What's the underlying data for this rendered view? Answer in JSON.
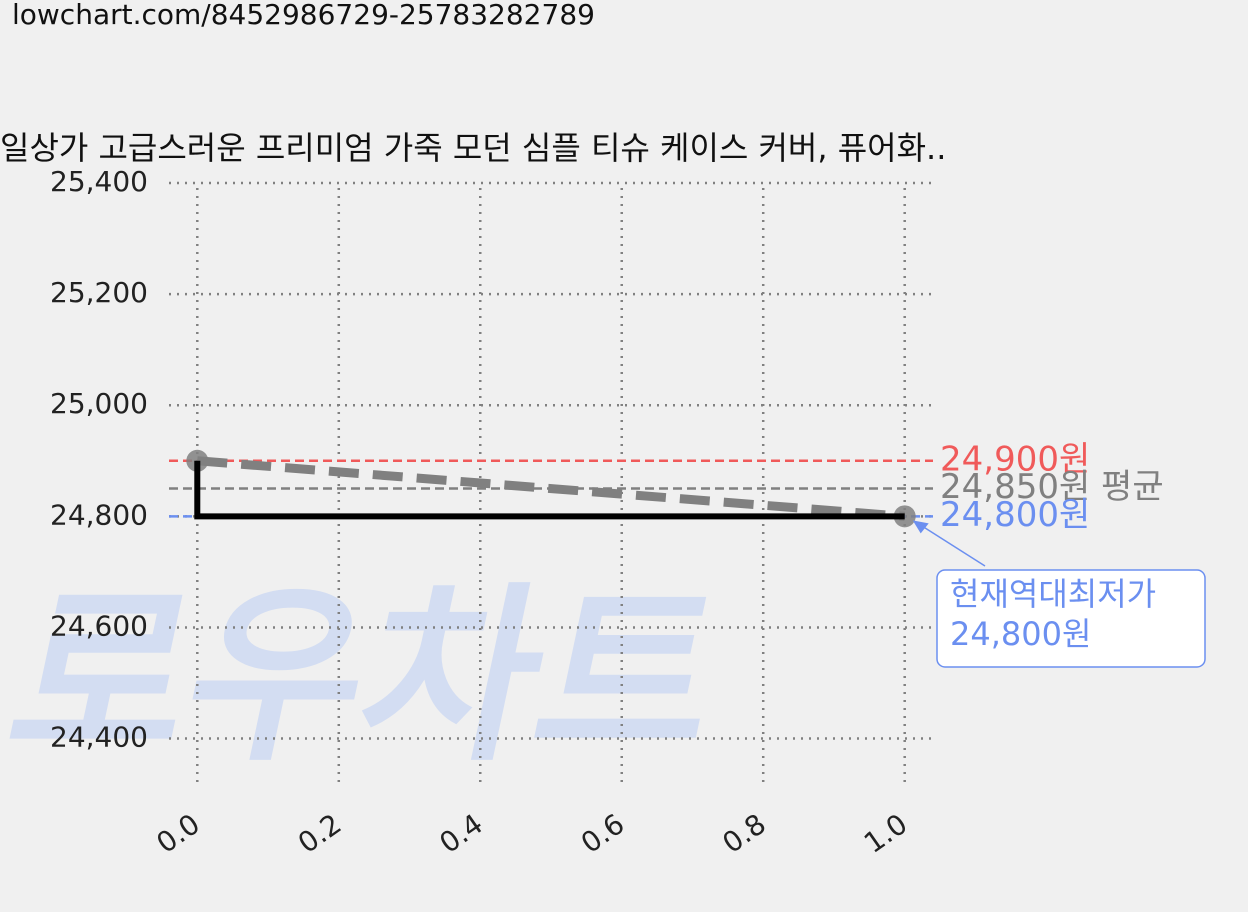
{
  "source_url": "lowchart.com/8452986729-25783282789",
  "chart_data": {
    "type": "line",
    "title": "일상가 고급스러운 프리미엄 가죽 모던 심플 티슈 케이스 커버, 퓨어화..",
    "watermark": "로우차트",
    "x": [
      0,
      1
    ],
    "series": [
      {
        "color": "#808080",
        "style": "dashed",
        "markers": true,
        "values": [
          24900,
          24800
        ]
      },
      {
        "color": "#000000",
        "style": "solid",
        "step": "pre",
        "values": [
          24900,
          24800
        ]
      }
    ],
    "hlines": [
      {
        "value": 24900,
        "label": "24,900원",
        "color": "#f05a5a"
      },
      {
        "value": 24850,
        "label": "24,850원 평균",
        "color": "#808080"
      },
      {
        "value": 24800,
        "label": "24,800원",
        "color": "#6b8ff0"
      }
    ],
    "annotation": {
      "lines": [
        "현재역대최저가",
        "24,800원"
      ],
      "x": 1,
      "y": 24800,
      "color": "#6b8ff0"
    },
    "xlim": [
      -0.04,
      1.04
    ],
    "ylim": [
      24320,
      25400
    ],
    "xticks": [
      {
        "value": 0,
        "label": "0.0"
      },
      {
        "value": 0.2,
        "label": "0.2"
      },
      {
        "value": 0.4,
        "label": "0.4"
      },
      {
        "value": 0.6,
        "label": "0.6"
      },
      {
        "value": 0.8,
        "label": "0.8"
      },
      {
        "value": 1,
        "label": "1.0"
      }
    ],
    "yticks": [
      {
        "value": 24400,
        "label": "24,400"
      },
      {
        "value": 24600,
        "label": "24,600"
      },
      {
        "value": 24800,
        "label": "24,800"
      },
      {
        "value": 25000,
        "label": "25,000"
      },
      {
        "value": 25200,
        "label": "25,200"
      },
      {
        "value": 25400,
        "label": "25,400"
      }
    ],
    "grid": true
  }
}
